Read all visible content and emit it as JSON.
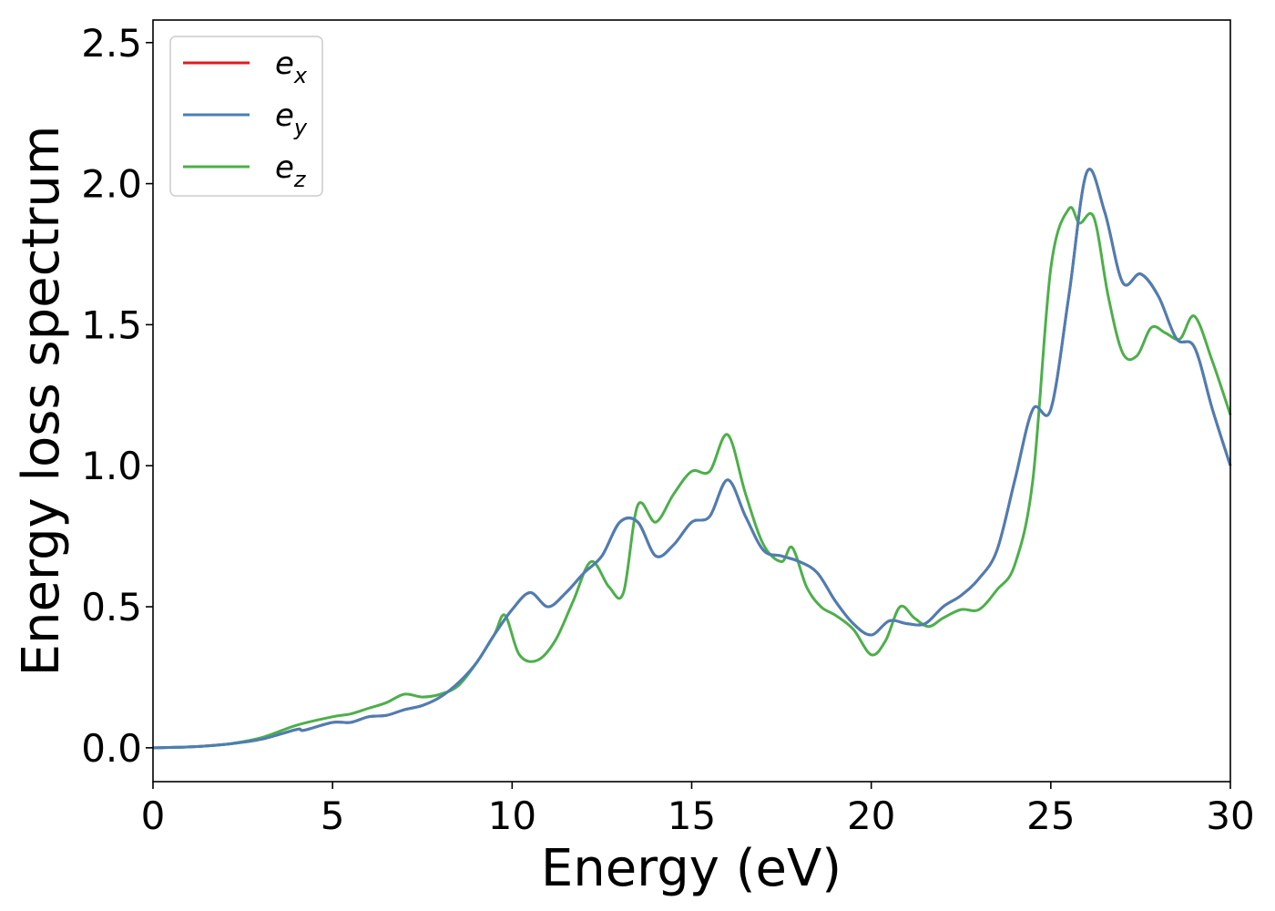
{
  "chart_data": {
    "type": "line",
    "xlabel": "Energy (eV)",
    "ylabel": "Energy loss spectrum",
    "xlim": [
      0,
      30
    ],
    "ylim": [
      -0.12,
      2.58
    ],
    "xticks": [
      "0",
      "5",
      "10",
      "15",
      "20",
      "25",
      "30"
    ],
    "yticks": [
      "0.0",
      "0.5",
      "1.0",
      "1.5",
      "2.0",
      "2.5"
    ],
    "grid": false,
    "legend_position": "top-left",
    "series": [
      {
        "name": "e",
        "sub": "x",
        "color": "#e41a1c",
        "x": [
          0,
          1,
          2,
          3,
          4,
          4.2,
          5,
          5.5,
          6,
          6.5,
          7,
          7.5,
          8,
          8.5,
          9,
          9.5,
          10,
          10.5,
          11,
          11.5,
          12,
          12.5,
          13,
          13.5,
          14,
          14.5,
          15,
          15.5,
          16,
          16.5,
          17,
          17.5,
          18,
          18.5,
          19,
          19.5,
          20,
          20.5,
          21,
          21.5,
          22,
          22.5,
          23,
          23.5,
          24,
          24.5,
          25,
          25.5,
          26,
          26.5,
          27,
          27.5,
          28,
          28.5,
          29,
          29.5,
          30
        ],
        "y": [
          0,
          0.003,
          0.012,
          0.03,
          0.065,
          0.062,
          0.09,
          0.09,
          0.11,
          0.115,
          0.135,
          0.15,
          0.18,
          0.23,
          0.3,
          0.4,
          0.49,
          0.55,
          0.5,
          0.55,
          0.62,
          0.68,
          0.8,
          0.8,
          0.68,
          0.72,
          0.8,
          0.82,
          0.95,
          0.82,
          0.7,
          0.68,
          0.66,
          0.62,
          0.52,
          0.44,
          0.4,
          0.45,
          0.44,
          0.44,
          0.5,
          0.54,
          0.6,
          0.7,
          0.95,
          1.2,
          1.2,
          1.6,
          2.04,
          1.9,
          1.65,
          1.68,
          1.6,
          1.45,
          1.42,
          1.2,
          1.0
        ]
      },
      {
        "name": "e",
        "sub": "y",
        "color": "#4a7fb5",
        "x": [
          0,
          1,
          2,
          3,
          4,
          4.2,
          5,
          5.5,
          6,
          6.5,
          7,
          7.5,
          8,
          8.5,
          9,
          9.5,
          10,
          10.5,
          11,
          11.5,
          12,
          12.5,
          13,
          13.5,
          14,
          14.5,
          15,
          15.5,
          16,
          16.5,
          17,
          17.5,
          18,
          18.5,
          19,
          19.5,
          20,
          20.5,
          21,
          21.5,
          22,
          22.5,
          23,
          23.5,
          24,
          24.5,
          25,
          25.5,
          26,
          26.5,
          27,
          27.5,
          28,
          28.5,
          29,
          29.5,
          30
        ],
        "y": [
          0,
          0.003,
          0.012,
          0.03,
          0.065,
          0.062,
          0.09,
          0.09,
          0.11,
          0.115,
          0.135,
          0.15,
          0.18,
          0.23,
          0.3,
          0.4,
          0.49,
          0.55,
          0.5,
          0.55,
          0.62,
          0.68,
          0.8,
          0.8,
          0.68,
          0.72,
          0.8,
          0.82,
          0.95,
          0.82,
          0.7,
          0.68,
          0.66,
          0.62,
          0.52,
          0.44,
          0.4,
          0.45,
          0.44,
          0.44,
          0.5,
          0.54,
          0.6,
          0.7,
          0.95,
          1.2,
          1.2,
          1.6,
          2.04,
          1.9,
          1.65,
          1.68,
          1.6,
          1.45,
          1.42,
          1.2,
          1.0
        ]
      },
      {
        "name": "e",
        "sub": "z",
        "color": "#4daf4a",
        "x": [
          0,
          1,
          2,
          3,
          4,
          5,
          5.5,
          6,
          6.5,
          7,
          7.5,
          8,
          8.5,
          9,
          9.5,
          9.8,
          10.2,
          10.7,
          11.2,
          11.7,
          12.2,
          12.7,
          13.1,
          13.5,
          14,
          14.5,
          15,
          15.5,
          16,
          16.5,
          17,
          17.5,
          17.8,
          18.2,
          18.6,
          19,
          19.5,
          20,
          20.4,
          20.8,
          21.2,
          21.6,
          22,
          22.5,
          23,
          23.5,
          24,
          24.5,
          25,
          25.5,
          25.8,
          26.2,
          26.6,
          27,
          27.4,
          27.8,
          28.2,
          28.6,
          29,
          29.5,
          30
        ],
        "y": [
          0,
          0.003,
          0.012,
          0.035,
          0.08,
          0.11,
          0.12,
          0.14,
          0.16,
          0.19,
          0.18,
          0.19,
          0.22,
          0.3,
          0.4,
          0.47,
          0.33,
          0.31,
          0.38,
          0.52,
          0.66,
          0.57,
          0.55,
          0.86,
          0.8,
          0.9,
          0.98,
          0.98,
          1.11,
          0.9,
          0.72,
          0.66,
          0.71,
          0.57,
          0.5,
          0.47,
          0.42,
          0.33,
          0.38,
          0.5,
          0.46,
          0.43,
          0.46,
          0.49,
          0.49,
          0.56,
          0.65,
          0.95,
          1.7,
          1.91,
          1.86,
          1.88,
          1.6,
          1.4,
          1.39,
          1.49,
          1.47,
          1.45,
          1.53,
          1.37,
          1.18
        ]
      }
    ]
  }
}
